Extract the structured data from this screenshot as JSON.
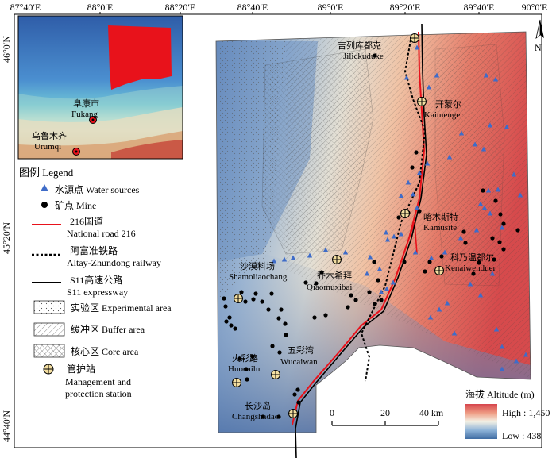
{
  "coordinates": {
    "top_labels": [
      "87°40′E",
      "88°0′E",
      "88°20′E",
      "88°40′E",
      "89°0′E",
      "89°20′E",
      "89°40′E",
      "90°0′E"
    ],
    "left_labels": [
      "46°0′N",
      "45°20′N",
      "44°40′N"
    ]
  },
  "inset": {
    "cities": [
      {
        "cn": "阜康市",
        "en": "Fukang"
      },
      {
        "cn": "乌鲁木齐",
        "en": "Urumqi"
      }
    ],
    "highlight_color": "#e8121b"
  },
  "legend": {
    "title": "图例 Legend",
    "items": [
      {
        "line1": "水源点 Water sources",
        "line2": ""
      },
      {
        "line1": "矿点 Mine",
        "line2": ""
      },
      {
        "line1": "216国道",
        "line2": "National road 216"
      },
      {
        "line1": "阿富准铁路",
        "line2": "Altay-Zhundong railway"
      },
      {
        "line1": "S11高速公路",
        "line2": "S11 expressway"
      },
      {
        "line1": "实验区 Experimental area",
        "line2": ""
      },
      {
        "line1": "缓冲区 Buffer area",
        "line2": ""
      },
      {
        "line1": "核心区 Core area",
        "line2": ""
      },
      {
        "line1": "管护站",
        "line2": "Management and",
        "line3": "protection station"
      }
    ]
  },
  "stations": [
    {
      "cn": "吉列库都克",
      "en": "Jilickuduke"
    },
    {
      "cn": "开蒙尔",
      "en": "Kaimenger"
    },
    {
      "cn": "喀木斯特",
      "en": "Kamusite"
    },
    {
      "cn": "科乃温都尔",
      "en": "Kenaiwenduer"
    },
    {
      "cn": "沙漠料场",
      "en": "Shamoliaochang"
    },
    {
      "cn": "乔木希拜",
      "en": "Qiaomuxibai"
    },
    {
      "cn": "火彩路",
      "en": "Huocailu"
    },
    {
      "cn": "五彩湾",
      "en": "Wucaiwan"
    },
    {
      "cn": "长沙岛",
      "en": "Changshadao"
    }
  ],
  "scale_bar": {
    "ticks": [
      "0",
      "20",
      "40 km"
    ]
  },
  "north_arrow": {
    "label": "N"
  },
  "altitude": {
    "title": "海拔 Altitude (m)",
    "high": "High : 1,450",
    "low": "Low : 438",
    "colors": [
      "#d6454c",
      "#ee9a82",
      "#f4f1e4",
      "#8eb3d8",
      "#3f6ca3"
    ]
  },
  "colors": {
    "national_road": "#e8121b",
    "rail_expressway": "#000000"
  }
}
